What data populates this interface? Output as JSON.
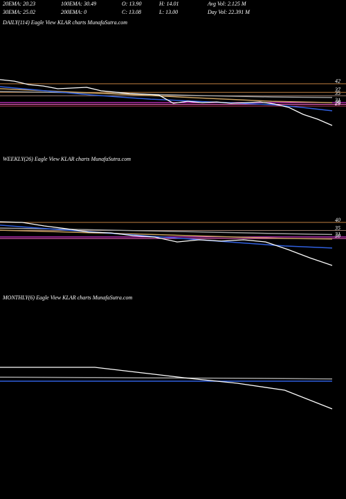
{
  "header": {
    "row1": [
      "20EMA: 20.23",
      "100EMA: 30.49",
      "O: 13.90",
      "H: 14.01",
      "Avg Vol: 2.125 M"
    ],
    "row2": [
      "30EMA: 25.02",
      "200EMA: 0",
      "C: 13.08",
      "L: 13.00",
      "Day Vol: 22.391 M"
    ]
  },
  "chart_data": [
    {
      "type": "line",
      "title": "DAILY(114) Eagle   View   KLAR charts MunafaSutra.com",
      "ylim": [
        10,
        48
      ],
      "yticks": [
        {
          "value": 42,
          "color": "#c08040"
        },
        {
          "value": 37,
          "color": "#c08040"
        },
        {
          "value": 35,
          "color": "#a08070"
        },
        {
          "value": 31,
          "color": "#ff40ff"
        },
        {
          "value": 30,
          "color": "#ff66cc"
        },
        {
          "value": 29,
          "color": "#c04060"
        }
      ],
      "series": [
        {
          "color": "#a0a0a0",
          "values": [
            37.5,
            37.2,
            36.9,
            36.6,
            36.2,
            35.8,
            35.4,
            35.0,
            34.6,
            34.3,
            34.1,
            34.0
          ]
        },
        {
          "color": "#c8a060",
          "values": [
            39.1,
            38.3,
            37.5,
            36.7,
            35.9,
            35.1,
            34.2,
            33.4,
            32.6,
            31.8,
            31.4,
            31.0
          ]
        },
        {
          "color": "#3060e0",
          "values": [
            40.3,
            38.7,
            37.1,
            35.5,
            34.2,
            33.0,
            32.2,
            31.4,
            30.6,
            29.8,
            28.2,
            26.2
          ]
        },
        {
          "color": "#ffffff",
          "values": [
            44.4,
            43.5,
            41.5,
            40.7,
            39.1,
            39.5,
            39.9,
            37.9,
            37.1,
            36.3,
            35.9,
            35.4,
            30.6,
            31.8,
            31.0,
            31.4,
            30.6,
            31.0,
            31.4,
            30.2,
            28.2,
            24.1,
            21.3,
            17.7
          ]
        }
      ]
    },
    {
      "type": "line",
      "title": "WEEKLY(26) Eagle   View   KLAR charts MunafaSutra.com",
      "ylim": [
        6,
        49
      ],
      "yticks": [
        {
          "value": 40,
          "color": "#c08040"
        },
        {
          "value": 35,
          "color": "#a08070"
        },
        {
          "value": 31,
          "color": "#ff40ff"
        },
        {
          "value": 30,
          "color": "#ff66cc"
        }
      ],
      "series": [
        {
          "color": "#a0a0a0",
          "values": [
            36.5,
            36.0,
            35.4,
            34.8,
            34.2,
            33.6,
            33.0,
            32.5
          ]
        },
        {
          "color": "#c8a060",
          "values": [
            35.2,
            34.4,
            33.5,
            32.7,
            31.8,
            30.9,
            30.1,
            29.7
          ]
        },
        {
          "color": "#3060e0",
          "values": [
            38.3,
            36.1,
            34.0,
            31.8,
            29.7,
            27.5,
            25.4,
            24.1
          ]
        },
        {
          "color": "#ffffff",
          "values": [
            40.4,
            40.0,
            37.8,
            36.1,
            34.0,
            33.5,
            31.8,
            30.9,
            27.9,
            29.2,
            28.4,
            29.2,
            27.9,
            23.2,
            18.0,
            13.3
          ]
        }
      ]
    },
    {
      "type": "line",
      "title": "MONTHLY(6) Eagle   View   KLAR charts MunafaSutra.com",
      "ylim": [
        0,
        60
      ],
      "yticks": [],
      "series": [
        {
          "color": "#a0a0a0",
          "values": [
            33.5,
            33.3,
            33.1,
            32.9,
            32.7,
            32.5,
            32.3,
            32.0
          ]
        },
        {
          "color": "#3060e0",
          "values": [
            30,
            30,
            30,
            30,
            30,
            30,
            30,
            30
          ]
        },
        {
          "color": "#ffffff",
          "values": [
            42,
            42,
            42,
            37.2,
            32.4,
            28.2,
            22.2,
            6
          ]
        }
      ]
    }
  ]
}
